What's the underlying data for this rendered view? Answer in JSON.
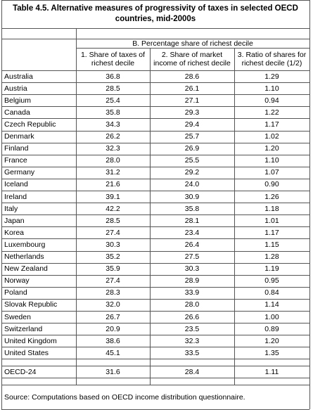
{
  "title": "Table 4.5. Alternative measures of progressivity of taxes in selected OECD countries, mid-2000s",
  "table": {
    "group_header": "B. Percentage share of richest decile",
    "columns": [
      "1. Share of taxes of richest decile",
      "2. Share of market income of richest decile",
      "3. Ratio of shares for richest decile (1/2)"
    ],
    "rows": [
      [
        "Australia",
        "36.8",
        "28.6",
        "1.29"
      ],
      [
        "Austria",
        "28.5",
        "26.1",
        "1.10"
      ],
      [
        "Belgium",
        "25.4",
        "27.1",
        "0.94"
      ],
      [
        "Canada",
        "35.8",
        "29.3",
        "1.22"
      ],
      [
        "Czech Republic",
        "34.3",
        "29.4",
        "1.17"
      ],
      [
        "Denmark",
        "26.2",
        "25.7",
        "1.02"
      ],
      [
        "Finland",
        "32.3",
        "26.9",
        "1.20"
      ],
      [
        "France",
        "28.0",
        "25.5",
        "1.10"
      ],
      [
        "Germany",
        "31.2",
        "29.2",
        "1.07"
      ],
      [
        "Iceland",
        "21.6",
        "24.0",
        "0.90"
      ],
      [
        "Ireland",
        "39.1",
        "30.9",
        "1.26"
      ],
      [
        "Italy",
        "42.2",
        "35.8",
        "1.18"
      ],
      [
        "Japan",
        "28.5",
        "28.1",
        "1.01"
      ],
      [
        "Korea",
        "27.4",
        "23.4",
        "1.17"
      ],
      [
        "Luxembourg",
        "30.3",
        "26.4",
        "1.15"
      ],
      [
        "Netherlands",
        "35.2",
        "27.5",
        "1.28"
      ],
      [
        "New Zealand",
        "35.9",
        "30.3",
        "1.19"
      ],
      [
        "Norway",
        "27.4",
        "28.9",
        "0.95"
      ],
      [
        "Poland",
        "28.3",
        "33.9",
        "0.84"
      ],
      [
        "Slovak Republic",
        "32.0",
        "28.0",
        "1.14"
      ],
      [
        "Sweden",
        "26.7",
        "26.6",
        "1.00"
      ],
      [
        "Switzerland",
        "20.9",
        "23.5",
        "0.89"
      ],
      [
        "United Kingdom",
        "38.6",
        "32.3",
        "1.20"
      ],
      [
        "United States",
        "45.1",
        "33.5",
        "1.35"
      ]
    ],
    "total": [
      "OECD-24",
      "31.6",
      "28.4",
      "1.11"
    ]
  },
  "source": "Source: Computations based on OECD income distribution questionnaire."
}
